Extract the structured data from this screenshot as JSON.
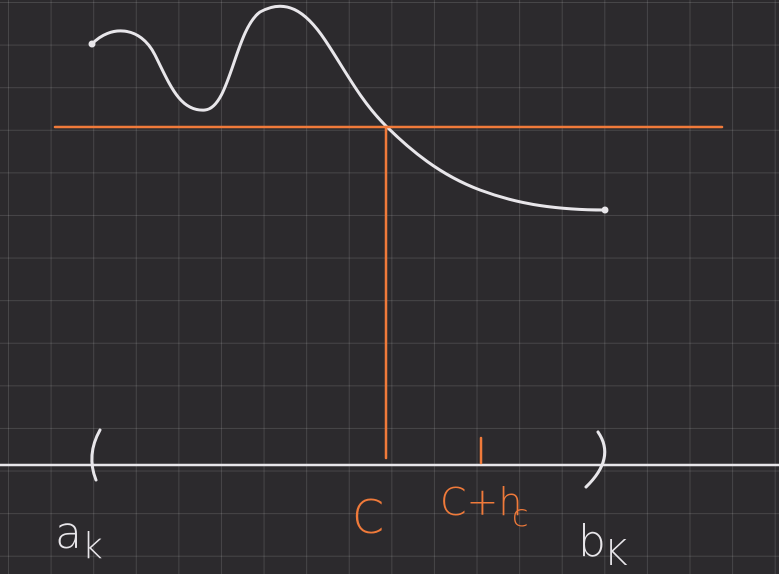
{
  "labels": {
    "a_main": "a",
    "a_sub": "k",
    "b_main": "b",
    "b_sub": "K",
    "c": "C",
    "c_plus": "C+h",
    "c_plus_sub": "c"
  },
  "colors": {
    "background": "#2c2a2d",
    "grid": "#5a585b",
    "ink_white": "#e8e6ea",
    "ink_orange": "#f07a3a"
  }
}
